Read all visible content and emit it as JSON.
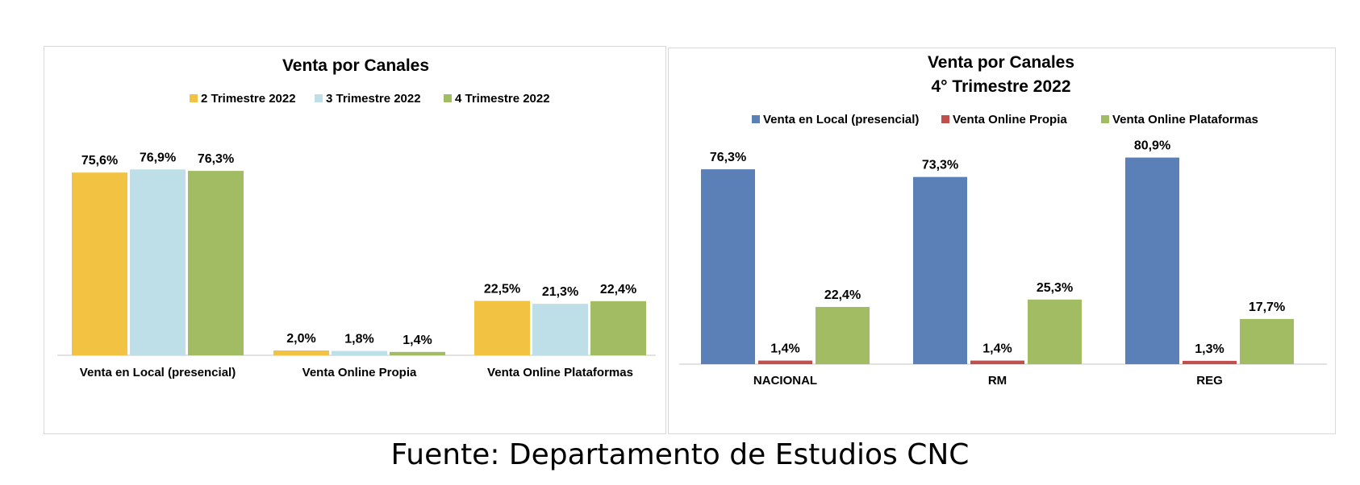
{
  "colors": {
    "left_series": [
      "#f2c242",
      "#bedfe8",
      "#a2bc63"
    ],
    "right_series": [
      "#5b80b7",
      "#c0504d",
      "#a2bc63"
    ],
    "axis": "#d9d9d9"
  },
  "chart_data": [
    {
      "type": "bar",
      "title": "Venta por Canales",
      "categories": [
        "Venta en Local (presencial)",
        "Venta  Online Propia",
        "Venta  Online Plataformas"
      ],
      "series": [
        {
          "name": "2 Trimestre 2022",
          "values": [
            75.6,
            2.0,
            22.5
          ],
          "labels": [
            "75,6%",
            "2,0%",
            "22,5%"
          ]
        },
        {
          "name": "3 Trimestre 2022",
          "values": [
            76.9,
            1.8,
            21.3
          ],
          "labels": [
            "76,9%",
            "1,8%",
            "21,3%"
          ]
        },
        {
          "name": "4 Trimestre 2022",
          "values": [
            76.3,
            1.4,
            22.4
          ],
          "labels": [
            "76,3%",
            "1,4%",
            "22,4%"
          ]
        }
      ],
      "legend": "top",
      "grid": false
    },
    {
      "type": "bar",
      "title": "Venta por Canales",
      "subtitle": "4° Trimestre 2022",
      "categories": [
        "NACIONAL",
        "RM",
        "REG"
      ],
      "series": [
        {
          "name": "Venta en Local (presencial)",
          "values": [
            76.3,
            73.3,
            80.9
          ],
          "labels": [
            "76,3%",
            "73,3%",
            "80,9%"
          ]
        },
        {
          "name": "Venta  Online Propia",
          "values": [
            1.4,
            1.4,
            1.3
          ],
          "labels": [
            "1,4%",
            "1,4%",
            "1,3%"
          ]
        },
        {
          "name": "Venta  Online Plataformas",
          "values": [
            22.4,
            25.3,
            17.7
          ],
          "labels": [
            "22,4%",
            "25,3%",
            "17,7%"
          ]
        }
      ],
      "legend": "top",
      "grid": false
    }
  ],
  "source": "Fuente: Departamento de Estudios CNC"
}
